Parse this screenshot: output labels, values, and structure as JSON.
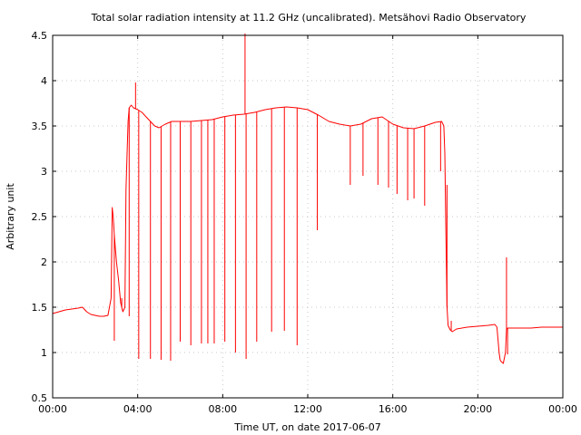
{
  "chart_data": {
    "type": "line",
    "title": "Total solar radiation intensity at 11.2 GHz (uncalibrated). Metsähovi Radio Observatory",
    "xlabel": "Time UT, on date 2017-06-07",
    "ylabel": "Arbitrary unit",
    "xlim": [
      0,
      24
    ],
    "ylim": [
      0.5,
      4.5
    ],
    "grid": true,
    "line_color": "#ff0000",
    "x_ticks": [
      {
        "value": 0,
        "label": "00:00"
      },
      {
        "value": 4,
        "label": "04:00"
      },
      {
        "value": 8,
        "label": "08:00"
      },
      {
        "value": 12,
        "label": "12:00"
      },
      {
        "value": 16,
        "label": "16:00"
      },
      {
        "value": 20,
        "label": "20:00"
      },
      {
        "value": 24,
        "label": "00:00"
      }
    ],
    "y_ticks": [
      {
        "value": 0.5,
        "label": "0.5"
      },
      {
        "value": 1,
        "label": "1"
      },
      {
        "value": 1.5,
        "label": "1.5"
      },
      {
        "value": 2,
        "label": "2"
      },
      {
        "value": 2.5,
        "label": "2.5"
      },
      {
        "value": 3,
        "label": "3"
      },
      {
        "value": 3.5,
        "label": "3.5"
      },
      {
        "value": 4,
        "label": "4"
      },
      {
        "value": 4.5,
        "label": "4.5"
      }
    ],
    "series": [
      {
        "x": [
          0.0,
          0.3,
          0.6,
          0.9,
          1.2,
          1.4,
          1.6,
          1.8,
          2.0,
          2.2,
          2.4,
          2.6,
          2.75,
          2.8,
          2.85,
          2.9,
          3.0,
          3.1,
          3.2,
          3.3,
          3.4,
          3.45,
          3.5,
          3.55,
          3.6,
          3.7,
          3.8,
          4.0,
          4.2,
          4.4,
          4.6,
          4.8,
          5.0,
          5.3,
          5.6,
          6.0,
          6.5,
          7.0,
          7.5,
          8.0,
          8.5,
          9.0,
          9.5,
          10.0,
          10.5,
          11.0,
          11.5,
          12.0,
          12.5,
          13.0,
          13.5,
          14.0,
          14.5,
          15.0,
          15.5,
          16.0,
          16.5,
          17.0,
          17.5,
          18.0,
          18.3,
          18.4,
          18.45,
          18.5,
          18.55,
          18.6,
          18.7,
          18.8,
          19.0,
          19.5,
          20.0,
          20.5,
          20.8,
          20.9,
          21.0,
          21.05,
          21.1,
          21.2,
          21.3,
          21.35,
          21.4,
          21.5,
          22.0,
          22.5,
          23.0,
          23.5,
          24.0
        ],
        "y": [
          1.43,
          1.45,
          1.47,
          1.48,
          1.49,
          1.5,
          1.45,
          1.42,
          1.41,
          1.4,
          1.4,
          1.41,
          1.6,
          2.6,
          2.5,
          2.3,
          2.0,
          1.8,
          1.55,
          1.45,
          1.5,
          2.8,
          3.2,
          3.55,
          3.7,
          3.73,
          3.7,
          3.68,
          3.65,
          3.6,
          3.55,
          3.5,
          3.48,
          3.52,
          3.55,
          3.55,
          3.55,
          3.56,
          3.57,
          3.6,
          3.62,
          3.63,
          3.65,
          3.68,
          3.7,
          3.71,
          3.7,
          3.68,
          3.62,
          3.55,
          3.52,
          3.5,
          3.52,
          3.58,
          3.6,
          3.52,
          3.48,
          3.47,
          3.5,
          3.54,
          3.55,
          3.5,
          3.2,
          2.3,
          1.5,
          1.3,
          1.25,
          1.23,
          1.26,
          1.28,
          1.29,
          1.3,
          1.31,
          1.28,
          1.0,
          0.92,
          0.9,
          0.88,
          1.0,
          1.25,
          1.27,
          1.27,
          1.27,
          1.27,
          1.28,
          1.28,
          1.28
        ]
      }
    ],
    "spikes": [
      {
        "x": 2.9,
        "y": 1.13
      },
      {
        "x": 3.25,
        "y": 1.6
      },
      {
        "x": 3.6,
        "y": 1.4
      },
      {
        "x": 3.9,
        "y": 3.98
      },
      {
        "x": 4.05,
        "y": 0.93
      },
      {
        "x": 4.6,
        "y": 0.93
      },
      {
        "x": 5.1,
        "y": 0.92
      },
      {
        "x": 5.55,
        "y": 0.91
      },
      {
        "x": 6.0,
        "y": 1.12
      },
      {
        "x": 6.5,
        "y": 1.08
      },
      {
        "x": 7.0,
        "y": 1.1
      },
      {
        "x": 7.3,
        "y": 1.1
      },
      {
        "x": 7.6,
        "y": 1.1
      },
      {
        "x": 8.1,
        "y": 1.12
      },
      {
        "x": 8.6,
        "y": 1.0
      },
      {
        "x": 9.05,
        "y": 4.52
      },
      {
        "x": 9.1,
        "y": 0.93
      },
      {
        "x": 9.6,
        "y": 1.12
      },
      {
        "x": 10.3,
        "y": 1.23
      },
      {
        "x": 10.9,
        "y": 1.24
      },
      {
        "x": 11.5,
        "y": 1.08
      },
      {
        "x": 12.45,
        "y": 2.35
      },
      {
        "x": 14.0,
        "y": 2.85
      },
      {
        "x": 14.6,
        "y": 2.95
      },
      {
        "x": 15.3,
        "y": 2.85
      },
      {
        "x": 15.8,
        "y": 2.82
      },
      {
        "x": 16.2,
        "y": 2.75
      },
      {
        "x": 16.7,
        "y": 2.68
      },
      {
        "x": 17.0,
        "y": 2.7
      },
      {
        "x": 17.5,
        "y": 2.62
      },
      {
        "x": 18.25,
        "y": 3.0
      },
      {
        "x": 18.55,
        "y": 2.85
      },
      {
        "x": 18.75,
        "y": 1.35
      },
      {
        "x": 21.35,
        "y": 2.05
      },
      {
        "x": 21.4,
        "y": 0.98
      }
    ]
  }
}
